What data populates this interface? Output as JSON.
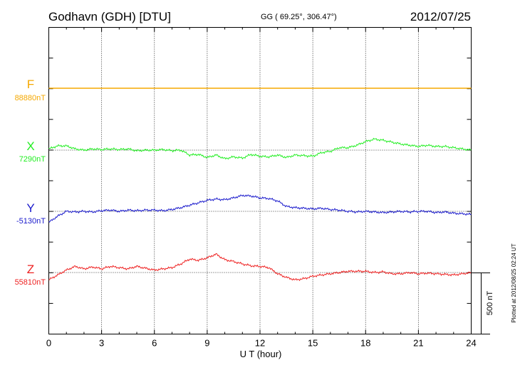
{
  "header": {
    "station": "Godhavn (GDH)  [DTU]",
    "coords": "GG ( 69.25°, 306.47°)",
    "date": "2012/07/25"
  },
  "footer": {
    "plotted_note": "Plotted at 2012/08/25 02:24  UT",
    "scale_bar_label": "500 nT"
  },
  "chart_data": {
    "type": "line",
    "xlabel": "U T (hour)",
    "xlim": [
      0,
      24
    ],
    "xticks": [
      0,
      3,
      6,
      9,
      12,
      15,
      18,
      21,
      24
    ],
    "xtick_labels": [
      "0",
      "3",
      "6",
      "9",
      "12",
      "15",
      "18",
      "21",
      "24"
    ],
    "grid": true,
    "scale_bar_nT": 500,
    "series": [
      {
        "name": "F",
        "baseline_label": "88880nT",
        "baseline_nT": 88880,
        "color": "#f5a800",
        "x": [
          0,
          24
        ],
        "values": [
          88880,
          88880
        ]
      },
      {
        "name": "X",
        "baseline_label": "7290nT",
        "baseline_nT": 7290,
        "color": "#22ee22",
        "x": [
          0,
          0.5,
          1,
          1.5,
          2,
          2.5,
          3,
          3.5,
          4,
          4.5,
          5,
          5.5,
          6,
          6.5,
          7,
          7.5,
          8,
          8.5,
          9,
          9.5,
          10,
          10.5,
          11,
          11.5,
          12,
          12.5,
          13,
          13.5,
          14,
          14.5,
          15,
          15.5,
          16,
          16.5,
          17,
          17.5,
          18,
          18.5,
          19,
          19.5,
          20,
          20.5,
          21,
          21.5,
          22,
          22.5,
          23,
          23.5,
          24
        ],
        "values": [
          7300,
          7325,
          7325,
          7300,
          7290,
          7300,
          7295,
          7300,
          7295,
          7300,
          7285,
          7290,
          7290,
          7295,
          7285,
          7290,
          7250,
          7255,
          7230,
          7250,
          7220,
          7235,
          7225,
          7255,
          7240,
          7235,
          7250,
          7230,
          7250,
          7245,
          7240,
          7270,
          7280,
          7310,
          7310,
          7330,
          7360,
          7380,
          7370,
          7355,
          7340,
          7330,
          7320,
          7330,
          7320,
          7320,
          7310,
          7300,
          7290
        ]
      },
      {
        "name": "Y",
        "baseline_label": "-5130nT",
        "baseline_nT": -5130,
        "color": "#1a1acc",
        "x": [
          0,
          0.5,
          1,
          1.5,
          2,
          2.5,
          3,
          3.5,
          4,
          4.5,
          5,
          5.5,
          6,
          6.5,
          7,
          7.5,
          8,
          8.5,
          9,
          9.5,
          10,
          10.5,
          11,
          11.5,
          12,
          12.5,
          13,
          13.5,
          14,
          14.5,
          15,
          15.5,
          16,
          16.5,
          17,
          17.5,
          18,
          18.5,
          19,
          19.5,
          20,
          20.5,
          21,
          21.5,
          22,
          22.5,
          23,
          23.5,
          24
        ],
        "values": [
          -5220,
          -5170,
          -5130,
          -5135,
          -5130,
          -5135,
          -5125,
          -5120,
          -5130,
          -5120,
          -5125,
          -5120,
          -5120,
          -5125,
          -5115,
          -5100,
          -5080,
          -5060,
          -5040,
          -5030,
          -5035,
          -5020,
          -5000,
          -5005,
          -5020,
          -5025,
          -5045,
          -5090,
          -5100,
          -5105,
          -5110,
          -5105,
          -5115,
          -5120,
          -5130,
          -5135,
          -5130,
          -5135,
          -5140,
          -5135,
          -5130,
          -5135,
          -5130,
          -5130,
          -5140,
          -5135,
          -5145,
          -5150,
          -5155
        ]
      },
      {
        "name": "Z",
        "baseline_label": "55810nT",
        "baseline_nT": 55810,
        "color": "#ee2222",
        "x": [
          0,
          0.5,
          1,
          1.5,
          2,
          2.5,
          3,
          3.5,
          4,
          4.5,
          5,
          5.5,
          6,
          6.5,
          7,
          7.5,
          8,
          8.5,
          9,
          9.5,
          10,
          10.5,
          11,
          11.5,
          12,
          12.5,
          13,
          13.5,
          14,
          14.5,
          15,
          15.5,
          16,
          16.5,
          17,
          17.5,
          18,
          18.5,
          19,
          19.5,
          20,
          20.5,
          21,
          21.5,
          22,
          22.5,
          23,
          23.5,
          24
        ],
        "values": [
          55750,
          55790,
          55830,
          55860,
          55840,
          55855,
          55840,
          55860,
          55850,
          55840,
          55860,
          55845,
          55830,
          55840,
          55850,
          55880,
          55920,
          55910,
          55930,
          55960,
          55915,
          55900,
          55880,
          55865,
          55860,
          55850,
          55800,
          55770,
          55750,
          55760,
          55780,
          55790,
          55800,
          55810,
          55820,
          55820,
          55820,
          55810,
          55815,
          55800,
          55800,
          55810,
          55800,
          55805,
          55800,
          55795,
          55790,
          55800,
          55810
        ]
      }
    ]
  }
}
